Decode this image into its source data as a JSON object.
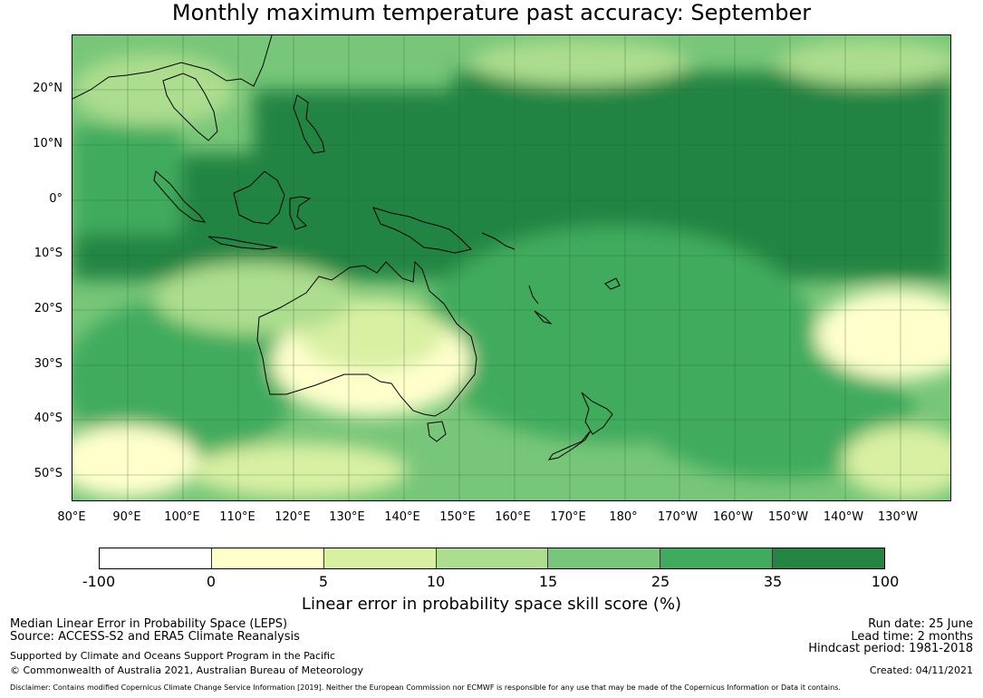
{
  "title": "Monthly maximum temperature past accuracy: September",
  "map": {
    "lat_labels": [
      "20°N",
      "10°N",
      "0°",
      "10°S",
      "20°S",
      "30°S",
      "40°S",
      "50°S"
    ],
    "lon_labels": [
      "80°E",
      "90°E",
      "100°E",
      "110°E",
      "120°E",
      "130°E",
      "140°E",
      "150°E",
      "160°E",
      "170°E",
      "180°",
      "170°W",
      "160°W",
      "150°W",
      "140°W",
      "130°W"
    ],
    "region": "Australia, Maritime Continent and South-West Pacific"
  },
  "colorbar": {
    "title": "Linear error in probability space skill score (%)",
    "ticks": [
      "-100",
      "0",
      "5",
      "10",
      "15",
      "25",
      "35",
      "100"
    ],
    "colors": [
      "#ffffff",
      "#ffffcc",
      "#d9f0a3",
      "#addd8e",
      "#78c679",
      "#41ab5d",
      "#238443"
    ]
  },
  "footer": {
    "line1": "Median Linear Error in Probability Space (LEPS)",
    "line2": "Source: ACCESS-S2 and ERA5 Climate Reanalysis",
    "line3": "Supported by Climate and Oceans Support Program in the Pacific",
    "line4": "© Commonwealth of Australia 2021, Australian Bureau of Meteorology",
    "run_date": "Run date: 25 June",
    "lead_time": "Lead time: 2 months",
    "hindcast": "Hindcast period: 1981-2018",
    "created": "Created: 04/11/2021",
    "disclaimer": "Disclaimer: Contains modified Copernicus Climate Change Service Information [2019]. Neither the European Commission nor ECMWF is responsible for any use that may be made of the Copernicus Information or Data it contains."
  }
}
